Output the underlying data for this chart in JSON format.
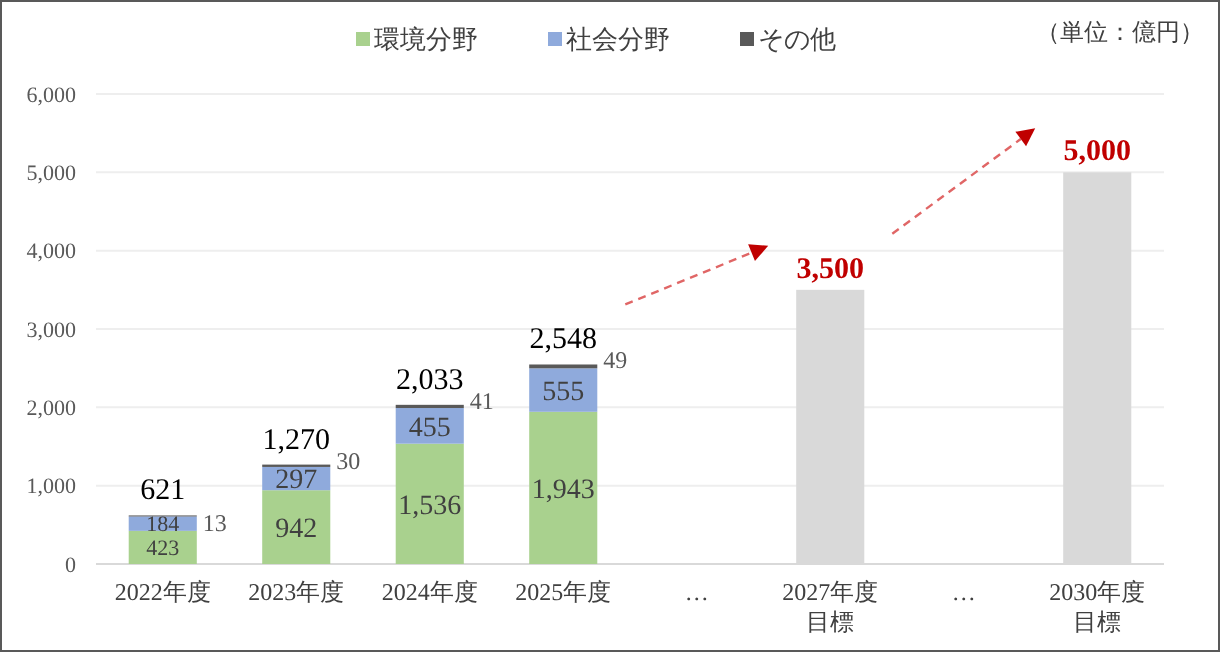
{
  "chart_data": {
    "type": "bar",
    "stacked": true,
    "categories": [
      "2022年度",
      "2023年度",
      "2024年度",
      "2025年度",
      "…",
      "2027年度目標",
      "…",
      "2030年度目標"
    ],
    "series": [
      {
        "name": "環境分野",
        "color": "#a9d18e",
        "values": [
          423,
          942,
          1536,
          1943,
          null,
          null,
          null,
          null
        ],
        "value_labels": [
          "423",
          "942",
          "1,536",
          "1,943",
          null,
          null,
          null,
          null
        ]
      },
      {
        "name": "社会分野",
        "color": "#8faadc",
        "values": [
          184,
          297,
          455,
          555,
          null,
          null,
          null,
          null
        ],
        "value_labels": [
          "184",
          "297",
          "455",
          "555",
          null,
          null,
          null,
          null
        ]
      },
      {
        "name": "その他",
        "color": "#595959",
        "values": [
          13,
          30,
          41,
          49,
          null,
          null,
          null,
          null
        ],
        "value_labels": [
          "13",
          "30",
          "41",
          "49",
          null,
          null,
          null,
          null
        ]
      },
      {
        "color": "#d9d9d9",
        "values": [
          null,
          null,
          null,
          null,
          null,
          3500,
          null,
          5000
        ],
        "value_labels": [
          null,
          null,
          null,
          null,
          null,
          "3,500",
          null,
          "5,000"
        ]
      }
    ],
    "totals": [
      "621",
      "1,270",
      "2,033",
      "2,548",
      null,
      null,
      null,
      null
    ],
    "ylim": [
      0,
      6000
    ],
    "yticks": [
      {
        "value": 0,
        "label": "0"
      },
      {
        "value": 1000,
        "label": "1,000"
      },
      {
        "value": 2000,
        "label": "2,000"
      },
      {
        "value": 3000,
        "label": "3,000"
      },
      {
        "value": 4000,
        "label": "4,000"
      },
      {
        "value": 5000,
        "label": "5,000"
      },
      {
        "value": 6000,
        "label": "6,000"
      }
    ],
    "grid": "y",
    "legend": "top",
    "annotations": [
      "（単位：億円）"
    ]
  }
}
